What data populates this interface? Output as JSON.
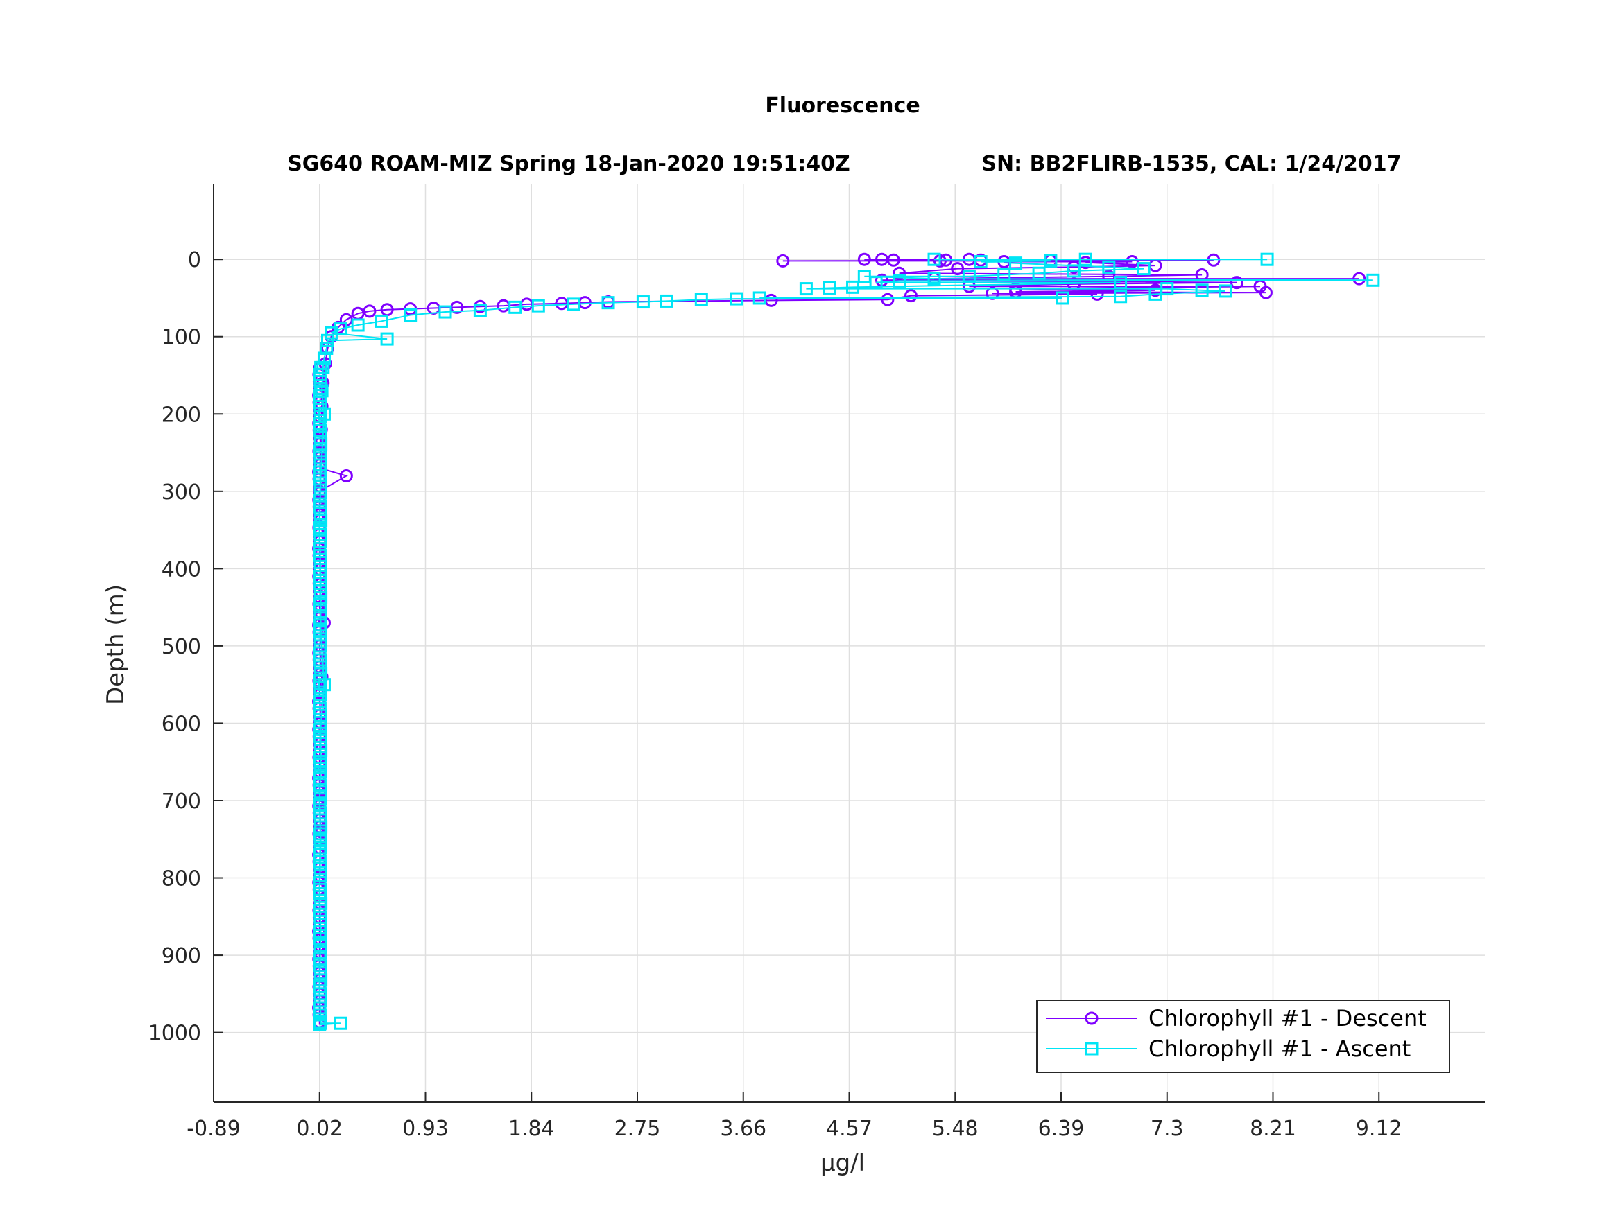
{
  "chart_data": {
    "type": "scatter",
    "title": "Fluorescence",
    "subtitle_left": "SG640 ROAM-MIZ Spring 18-Jan-2020 19:51:40Z",
    "subtitle_right": "SN: BB2FLIRB-1535, CAL: 1/24/2017",
    "xlabel": "μg/l",
    "ylabel": "Depth (m)",
    "xlim": [
      -0.89,
      10.03
    ],
    "ylim": [
      1090,
      -97
    ],
    "xticks": [
      "-0.89",
      "0.02",
      "0.93",
      "1.84",
      "2.75",
      "3.66",
      "4.57",
      "5.48",
      "6.39",
      "7.3",
      "8.21",
      "9.12"
    ],
    "yticks": [
      "0",
      "100",
      "200",
      "300",
      "400",
      "500",
      "600",
      "700",
      "800",
      "900",
      "1000"
    ],
    "grid": true,
    "legend_position": "bottom-right",
    "colors": {
      "descent": "#7f00ff",
      "ascent": "#00e5f5"
    },
    "series": [
      {
        "name": "Chlorophyll #1 - Descent",
        "marker": "circle",
        "x": [
          4.0,
          4.7,
          4.85,
          4.95,
          5.35,
          5.4,
          5.6,
          5.7,
          5.9,
          6.3,
          6.6,
          7.0,
          7.7,
          7.2,
          6.5,
          5.5,
          5.0,
          4.85,
          7.6,
          6.8,
          5.3,
          8.95,
          7.9,
          6.5,
          5.6,
          6.0,
          8.1,
          7.2,
          6.0,
          5.8,
          8.15,
          6.7,
          5.1,
          4.9,
          3.9,
          2.5,
          2.3,
          2.1,
          1.8,
          1.6,
          1.4,
          1.2,
          1.0,
          0.8,
          0.6,
          0.45,
          0.35,
          0.25,
          0.18,
          0.12,
          0.09,
          0.07,
          0.05,
          0.04,
          0.035,
          0.03,
          0.025,
          0.02,
          0.02,
          0.25,
          0.02,
          0.03,
          0.02,
          0.06,
          0.02,
          0.04,
          0.02,
          0.03,
          0.02,
          0.02,
          0.03,
          0.02,
          0.02,
          0.02,
          0.02
        ],
        "y": [
          2,
          0,
          0,
          1,
          2,
          1,
          0,
          1,
          3,
          2,
          4,
          3,
          1,
          8,
          10,
          12,
          18,
          27,
          20,
          22,
          25,
          25,
          30,
          32,
          35,
          38,
          35,
          40,
          42,
          44,
          43,
          45,
          47,
          52,
          53,
          55,
          56,
          57,
          58,
          60,
          61,
          62,
          63,
          64,
          65,
          67,
          70,
          78,
          88,
          100,
          115,
          135,
          160,
          190,
          220,
          250,
          270,
          300,
          330,
          280,
          380,
          420,
          450,
          470,
          500,
          540,
          560,
          600,
          650,
          700,
          740,
          800,
          880,
          950,
          990
        ]
      },
      {
        "name": "Chlorophyll #1 - Ascent",
        "marker": "square",
        "x": [
          0.02,
          0.03,
          0.02,
          0.03,
          0.02,
          0.03,
          0.02,
          0.03,
          0.03,
          0.06,
          0.2,
          0.03,
          0.03,
          0.02,
          0.03,
          0.06,
          0.04,
          0.05,
          0.06,
          0.08,
          0.09,
          0.12,
          0.2,
          0.35,
          0.55,
          0.6,
          0.8,
          1.1,
          1.4,
          1.7,
          1.9,
          2.2,
          2.5,
          2.8,
          3.0,
          3.3,
          3.6,
          3.8,
          4.2,
          4.4,
          4.6,
          4.8,
          5.0,
          5.3,
          5.6,
          5.9,
          6.2,
          6.5,
          6.9,
          7.3,
          7.6,
          7.8,
          9.07,
          7.1,
          6.8,
          6.0,
          5.7,
          8.16,
          6.6,
          6.3,
          6.0,
          5.3,
          4.7,
          7.2,
          6.9,
          6.4
        ],
        "y": [
          990,
          988,
          940,
          870,
          820,
          750,
          705,
          650,
          605,
          550,
          988,
          480,
          415,
          350,
          280,
          200,
          170,
          140,
          128,
          115,
          105,
          95,
          90,
          85,
          80,
          103,
          72,
          68,
          66,
          62,
          60,
          58,
          56,
          55,
          54,
          52,
          51,
          50,
          38,
          37,
          36,
          30,
          28,
          25,
          22,
          20,
          18,
          15,
          30,
          38,
          40,
          41,
          27,
          12,
          10,
          5,
          3,
          0,
          0,
          2,
          5,
          0,
          22,
          45,
          48,
          50
        ]
      }
    ]
  }
}
